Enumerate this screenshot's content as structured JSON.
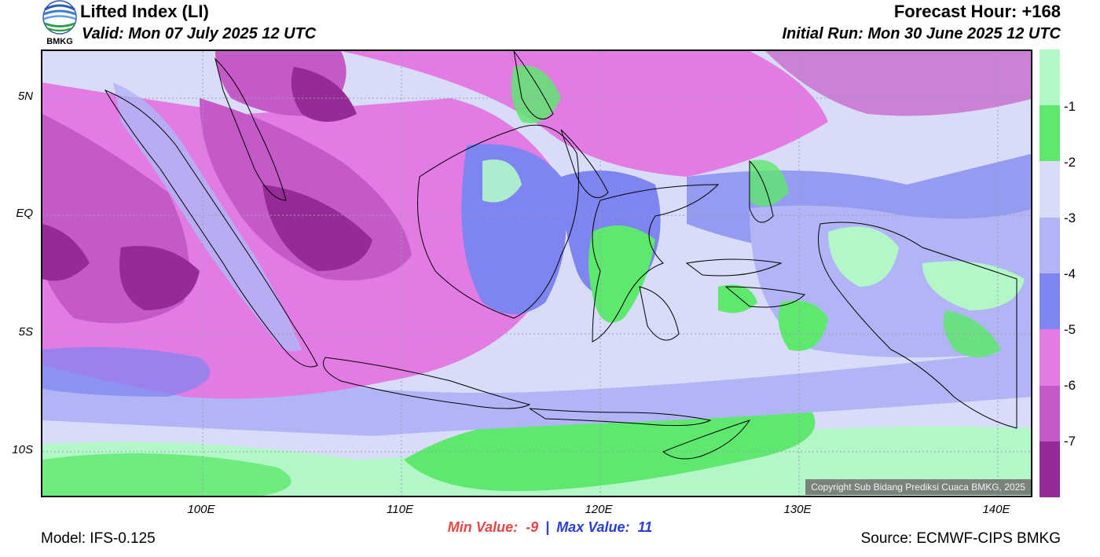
{
  "header": {
    "title": "Lifted Index (LI)",
    "valid": "Valid: Mon 07 July 2025 12 UTC",
    "forecast_hour": "Forecast Hour: +168",
    "initial_run": "Initial Run: Mon 30 June 2025 12 UTC"
  },
  "logo": {
    "text": "BMKG",
    "icon": "bmkg-logo-icon"
  },
  "axes": {
    "lat_labels": [
      "5N",
      "EQ",
      "5S",
      "10S"
    ],
    "lon_labels": [
      "100E",
      "110E",
      "120E",
      "130E",
      "140E"
    ]
  },
  "colorbar": {
    "labels": [
      "-1",
      "-2",
      "-3",
      "-4",
      "-5",
      "-6",
      "-7"
    ],
    "colors": [
      "#b3f7c8",
      "#5ee86e",
      "#d9dcf8",
      "#b1b5f5",
      "#7f85f0",
      "#e27be3",
      "#c45ac7",
      "#942b96"
    ]
  },
  "stats": {
    "min_label": "Min Value:",
    "min_value": "-9",
    "separator": "|",
    "max_label": "Max Value:",
    "max_value": "11"
  },
  "footer": {
    "model": "Model: IFS-0.125",
    "source": "Source: ECMWF-CIPS BMKG",
    "copyright": "Copyright Sub Bidang Prediksi Cuaca BMKG, 2025"
  },
  "map_colors": {
    "ocean_deep_purple": "#942b96",
    "purple": "#c45ac7",
    "magenta": "#e27be3",
    "blue": "#7f85f0",
    "light_blue": "#b1b5f5",
    "pale": "#d9dcf8",
    "green": "#5ee86e",
    "light_green": "#b3f7c8"
  }
}
